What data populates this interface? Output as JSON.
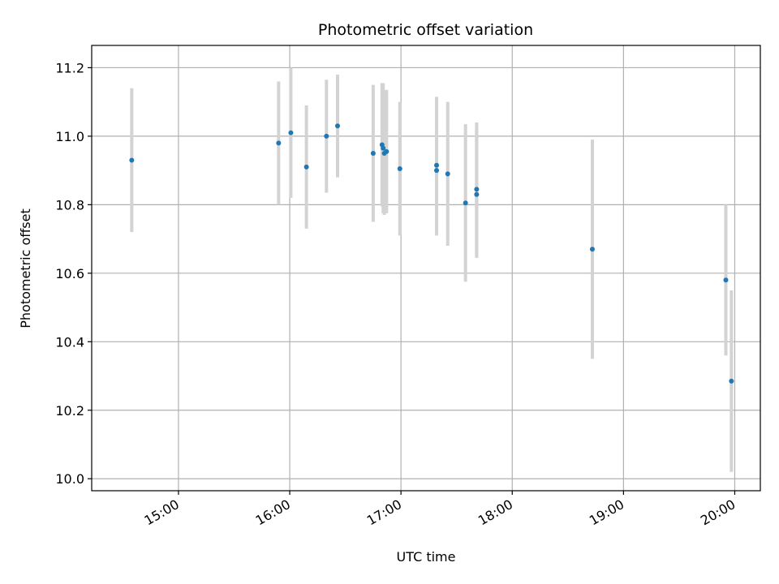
{
  "chart_data": {
    "type": "scatter",
    "title": "Photometric offset variation",
    "xlabel": "UTC time",
    "ylabel": "Photometric offset",
    "x_unit": "hours (UTC time of day)",
    "xlim": [
      14.22,
      20.23
    ],
    "ylim": [
      9.965,
      11.265
    ],
    "xticks": [
      15,
      16,
      17,
      18,
      19,
      20
    ],
    "xtick_labels": [
      "15:00",
      "16:00",
      "17:00",
      "18:00",
      "19:00",
      "20:00"
    ],
    "yticks": [
      10.0,
      10.2,
      10.4,
      10.6,
      10.8,
      11.0,
      11.2
    ],
    "ytick_labels": [
      "10.0",
      "10.2",
      "10.4",
      "10.6",
      "10.8",
      "11.0",
      "11.2"
    ],
    "grid": true,
    "legend": "none",
    "marker_color": "#1f77b4",
    "errorbar_color": "#d3d3d3",
    "points": [
      {
        "x": 14.58,
        "y": 10.93,
        "err": 0.21
      },
      {
        "x": 15.9,
        "y": 10.98,
        "err": 0.18
      },
      {
        "x": 16.01,
        "y": 11.01,
        "err": 0.19
      },
      {
        "x": 16.15,
        "y": 10.91,
        "err": 0.18
      },
      {
        "x": 16.33,
        "y": 11.0,
        "err": 0.165
      },
      {
        "x": 16.43,
        "y": 11.03,
        "err": 0.15
      },
      {
        "x": 16.75,
        "y": 10.95,
        "err": 0.2
      },
      {
        "x": 16.83,
        "y": 10.975,
        "err": 0.18
      },
      {
        "x": 16.84,
        "y": 10.965,
        "err": 0.19
      },
      {
        "x": 16.85,
        "y": 10.95,
        "err": 0.18
      },
      {
        "x": 16.87,
        "y": 10.955,
        "err": 0.18
      },
      {
        "x": 16.99,
        "y": 10.905,
        "err": 0.195
      },
      {
        "x": 17.32,
        "y": 10.915,
        "err": 0.2
      },
      {
        "x": 17.32,
        "y": 10.9,
        "err": 0.19
      },
      {
        "x": 17.42,
        "y": 10.89,
        "err": 0.21
      },
      {
        "x": 17.58,
        "y": 10.805,
        "err": 0.23
      },
      {
        "x": 17.68,
        "y": 10.845,
        "err": 0.195
      },
      {
        "x": 17.68,
        "y": 10.83,
        "err": 0.185
      },
      {
        "x": 18.72,
        "y": 10.67,
        "err": 0.32
      },
      {
        "x": 19.92,
        "y": 10.58,
        "err": 0.22
      },
      {
        "x": 19.97,
        "y": 10.285,
        "err": 0.265
      }
    ]
  }
}
